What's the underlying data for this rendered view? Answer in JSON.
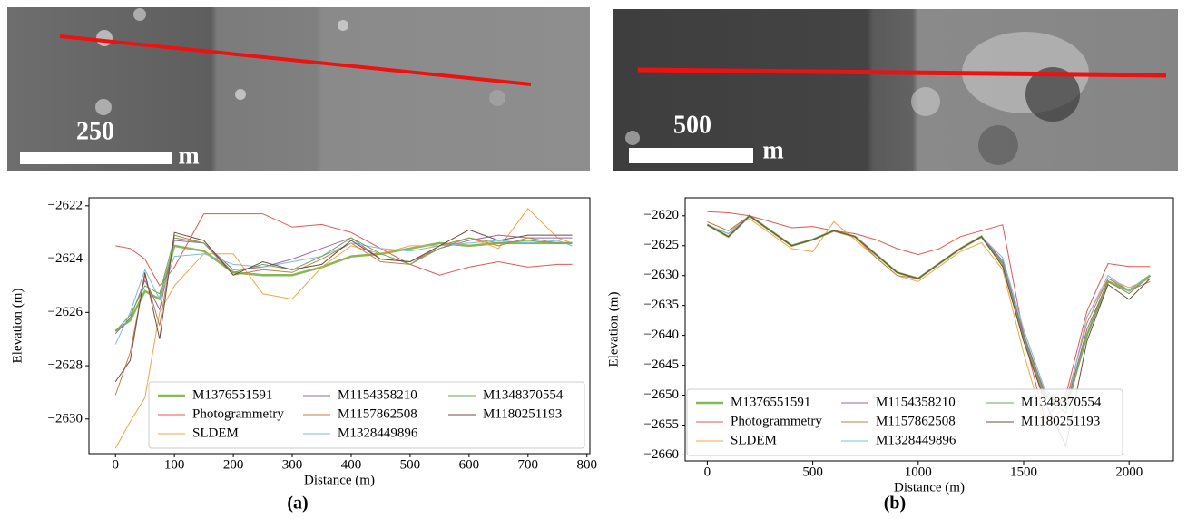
{
  "chart_data": [
    {
      "type": "line",
      "panel_label": "(a)",
      "image_scale_label": "250",
      "image_scale_unit": "m",
      "xlabel": "Distance (m)",
      "ylabel": "Elevation (m)",
      "xlim": [
        -45,
        805
      ],
      "xticks": [
        0,
        100,
        200,
        300,
        400,
        500,
        600,
        700,
        800
      ],
      "ylim": [
        -2631.3,
        -2621.7
      ],
      "yticks": [
        {
          "value": -2630,
          "label": "−2630"
        },
        {
          "value": -2628,
          "label": "−2628"
        },
        {
          "value": -2626,
          "label": "−2626"
        },
        {
          "value": -2624,
          "label": "−2624"
        },
        {
          "value": -2622,
          "label": "−2622"
        }
      ],
      "grid": false,
      "legend": "lower right",
      "x": [
        0,
        25,
        50,
        75,
        100,
        150,
        200,
        250,
        300,
        350,
        400,
        450,
        500,
        550,
        600,
        650,
        700,
        750,
        775
      ],
      "series": [
        {
          "name": "M1376551591",
          "color": "#86b955",
          "linewidth": 2.5,
          "values": [
            -2626.7,
            -2626.3,
            -2625.2,
            -2625.5,
            -2623.5,
            -2623.7,
            -2624.5,
            -2624.6,
            -2624.6,
            -2624.3,
            -2623.9,
            -2623.8,
            -2623.6,
            -2623.4,
            -2623.5,
            -2623.4,
            -2623.4,
            -2623.4,
            -2623.4
          ]
        },
        {
          "name": "Photogrammetry",
          "color": "#e8554e",
          "values": [
            -2623.5,
            -2623.6,
            -2624.0,
            -2625.0,
            -2624.3,
            -2622.3,
            -2622.3,
            -2622.3,
            -2622.8,
            -2622.7,
            -2623.0,
            -2623.6,
            -2624.2,
            -2624.6,
            -2624.3,
            -2624.1,
            -2624.3,
            -2624.2,
            -2624.2
          ]
        },
        {
          "name": "SLDEM",
          "color": "#f5a443",
          "values": [
            -2631.1,
            -2630.1,
            -2629.2,
            -2626.0,
            -2625.0,
            -2623.8,
            -2623.8,
            -2625.3,
            -2625.5,
            -2624.3,
            -2623.5,
            -2623.8,
            -2623.5,
            -2623.5,
            -2623.2,
            -2623.6,
            -2622.1,
            -2623.2,
            -2623.4
          ]
        },
        {
          "name": "M1154358210",
          "color": "#9b66aa",
          "values": [
            -2626.8,
            -2626.2,
            -2624.8,
            -2625.9,
            -2623.3,
            -2623.4,
            -2624.4,
            -2624.3,
            -2624.0,
            -2623.6,
            -2623.2,
            -2624.0,
            -2624.1,
            -2623.6,
            -2623.3,
            -2623.1,
            -2623.2,
            -2623.2,
            -2623.2
          ]
        },
        {
          "name": "M1157862508",
          "color": "#c47c4c",
          "values": [
            -2629.1,
            -2627.5,
            -2624.6,
            -2626.5,
            -2623.1,
            -2623.4,
            -2624.6,
            -2624.4,
            -2624.5,
            -2624.0,
            -2623.4,
            -2624.1,
            -2624.2,
            -2623.5,
            -2623.2,
            -2623.5,
            -2623.2,
            -2623.4,
            -2623.4
          ]
        },
        {
          "name": "M1328449896",
          "color": "#80b8e2",
          "values": [
            -2627.2,
            -2626.0,
            -2624.4,
            -2625.5,
            -2623.9,
            -2623.8,
            -2624.2,
            -2624.3,
            -2624.1,
            -2623.9,
            -2623.4,
            -2623.6,
            -2623.7,
            -2623.5,
            -2623.4,
            -2623.3,
            -2623.4,
            -2623.3,
            -2623.5
          ]
        },
        {
          "name": "M1348370554",
          "color": "#6fa852",
          "values": [
            -2626.7,
            -2626.1,
            -2625.0,
            -2625.3,
            -2623.2,
            -2623.4,
            -2624.5,
            -2624.2,
            -2624.4,
            -2623.9,
            -2623.2,
            -2623.8,
            -2624.2,
            -2623.6,
            -2623.2,
            -2623.4,
            -2623.3,
            -2623.4,
            -2623.4
          ]
        },
        {
          "name": "M1180251193",
          "color": "#6e4d3e",
          "values": [
            -2628.6,
            -2627.8,
            -2624.5,
            -2627.0,
            -2623.0,
            -2623.3,
            -2624.6,
            -2624.1,
            -2624.4,
            -2624.2,
            -2623.3,
            -2624.0,
            -2624.1,
            -2623.5,
            -2622.9,
            -2623.3,
            -2623.1,
            -2623.1,
            -2623.1
          ]
        }
      ]
    },
    {
      "type": "line",
      "panel_label": "(b)",
      "image_scale_label": "500",
      "image_scale_unit": "m",
      "xlabel": "Distance (m)",
      "ylabel": "Elevation (m)",
      "xlim": [
        -105,
        2210
      ],
      "xticks": [
        0,
        500,
        1000,
        1500,
        2000
      ],
      "ylim": [
        -2661,
        -2617
      ],
      "yticks": [
        {
          "value": -2660,
          "label": "−2660"
        },
        {
          "value": -2655,
          "label": "−2655"
        },
        {
          "value": -2650,
          "label": "−2650"
        },
        {
          "value": -2645,
          "label": "−2645"
        },
        {
          "value": -2640,
          "label": "−2640"
        },
        {
          "value": -2635,
          "label": "−2635"
        },
        {
          "value": -2630,
          "label": "−2630"
        },
        {
          "value": -2625,
          "label": "−2625"
        },
        {
          "value": -2620,
          "label": "−2620"
        }
      ],
      "grid": false,
      "legend": "lower left",
      "x": [
        0,
        100,
        200,
        300,
        400,
        500,
        600,
        700,
        800,
        900,
        1000,
        1100,
        1200,
        1300,
        1400,
        1500,
        1600,
        1700,
        1800,
        1900,
        2000,
        2100
      ],
      "series": [
        {
          "name": "M1376551591",
          "color": "#86b955",
          "linewidth": 2.5,
          "values": [
            -2621.5,
            -2623.5,
            -2620,
            -2622.5,
            -2625,
            -2624,
            -2622.5,
            -2623.5,
            -2626.5,
            -2629.5,
            -2630.5,
            -2628,
            -2625.5,
            -2623.5,
            -2628,
            -2640,
            -2650,
            -2652,
            -2640,
            -2631,
            -2632.5,
            -2630
          ]
        },
        {
          "name": "Photogrammetry",
          "color": "#e8554e",
          "values": [
            -2619.3,
            -2619.5,
            -2620,
            -2621,
            -2622,
            -2621.8,
            -2622.5,
            -2623,
            -2624,
            -2625.5,
            -2626.5,
            -2625.5,
            -2623.5,
            -2622.5,
            -2621.5,
            -2640,
            -2654,
            -2650,
            -2636,
            -2628,
            -2628.5,
            -2628.5
          ]
        },
        {
          "name": "SLDEM",
          "color": "#f5a443",
          "values": [
            -2621,
            -2622.5,
            -2620.5,
            -2623,
            -2625.5,
            -2626,
            -2621,
            -2624,
            -2627,
            -2630,
            -2631,
            -2628.5,
            -2626,
            -2624.5,
            -2629,
            -2643,
            -2655,
            -2652,
            -2637,
            -2630.5,
            -2632,
            -2630.5
          ]
        },
        {
          "name": "M1154358210",
          "color": "#9b66aa",
          "values": [
            -2621.5,
            -2623,
            -2620,
            -2622.5,
            -2625,
            -2624,
            -2622.5,
            -2623.5,
            -2626.5,
            -2629.5,
            -2630.5,
            -2628,
            -2625.5,
            -2623.5,
            -2627.5,
            -2640,
            -2649.5,
            -2652,
            -2639,
            -2631,
            -2633,
            -2630
          ]
        },
        {
          "name": "M1157862508",
          "color": "#c47c4c",
          "values": [
            -2621,
            -2622.5,
            -2620,
            -2622.5,
            -2625,
            -2624,
            -2622.5,
            -2623.5,
            -2627,
            -2630,
            -2630.5,
            -2628,
            -2625.5,
            -2623.5,
            -2628,
            -2641,
            -2650.5,
            -2651,
            -2638,
            -2630.5,
            -2632.5,
            -2631
          ]
        },
        {
          "name": "M1328449896",
          "color": "#80b8e2",
          "values": [
            -2621.5,
            -2623,
            -2620,
            -2622.5,
            -2625,
            -2624,
            -2622.5,
            -2623.5,
            -2626.5,
            -2629.5,
            -2630.5,
            -2628,
            -2625.5,
            -2623.5,
            -2627,
            -2639,
            -2649,
            -2652,
            -2637,
            -2630,
            -2632.5,
            -2630
          ]
        },
        {
          "name": "M1348370554",
          "color": "#6fa852",
          "values": [
            -2621.5,
            -2623.5,
            -2620,
            -2622.5,
            -2625,
            -2624,
            -2622.5,
            -2623.5,
            -2626.5,
            -2629.5,
            -2630.5,
            -2628,
            -2625.5,
            -2623.5,
            -2628,
            -2640.5,
            -2650,
            -2653,
            -2640,
            -2631,
            -2633,
            -2630
          ]
        },
        {
          "name": "M1180251193",
          "color": "#6e4d3e",
          "values": [
            -2621.5,
            -2623.5,
            -2620,
            -2622.5,
            -2625,
            -2624,
            -2622.5,
            -2623.5,
            -2626.5,
            -2629.5,
            -2630.5,
            -2628,
            -2625.5,
            -2623.5,
            -2628.5,
            -2641,
            -2651,
            -2658.5,
            -2641,
            -2631.5,
            -2634,
            -2630.5
          ]
        }
      ]
    }
  ]
}
